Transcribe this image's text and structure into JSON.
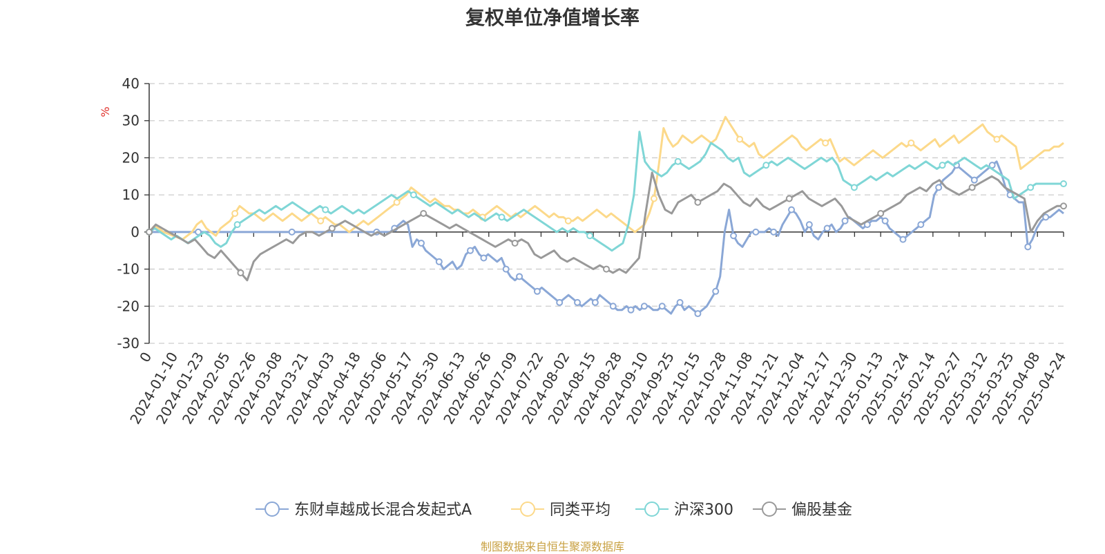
{
  "title": "复权单位净值增长率",
  "source_note": "制图数据来自恒生聚源数据库",
  "source_color": "#c8a041",
  "chart_data": {
    "type": "line",
    "title": "复权单位净值增长率",
    "ylabel": "%",
    "ylabel_color": "#e0302b",
    "ylim": [
      -30,
      40
    ],
    "yticks": [
      40,
      30,
      20,
      10,
      0,
      -10,
      -20,
      -30
    ],
    "grid": true,
    "legend_position": "bottom",
    "x_tick_labels": [
      "0",
      "2024-01-10",
      "2024-01-23",
      "2024-02-05",
      "2024-02-26",
      "2024-03-08",
      "2024-03-21",
      "2024-04-03",
      "2024-04-18",
      "2024-05-06",
      "2024-05-17",
      "2024-05-30",
      "2024-06-13",
      "2024-06-26",
      "2024-07-09",
      "2024-07-22",
      "2024-08-02",
      "2024-08-15",
      "2024-08-28",
      "2024-09-10",
      "2024-09-25",
      "2024-10-15",
      "2024-10-28",
      "2024-11-08",
      "2024-11-21",
      "2024-12-04",
      "2024-12-17",
      "2024-12-30",
      "2025-01-13",
      "2025-01-24",
      "2025-02-14",
      "2025-02-27",
      "2025-03-12",
      "2025-03-25",
      "2025-04-08",
      "2025-04-24"
    ],
    "series": [
      {
        "name": "东财卓越成长混合发起式A",
        "color": "#8aa7d6",
        "values": [
          0,
          0,
          0,
          0,
          0,
          0,
          0,
          0,
          0,
          0,
          0,
          0,
          0,
          0,
          0,
          0,
          0,
          0,
          0,
          0,
          0,
          0,
          0,
          0,
          0,
          0,
          0,
          0,
          0,
          0,
          0,
          0,
          0,
          0,
          0,
          0,
          0,
          0,
          0,
          0,
          0,
          0,
          0,
          0,
          0,
          0,
          0,
          0,
          0,
          0,
          0,
          0,
          0,
          0,
          0,
          1,
          2,
          3,
          2,
          -4,
          -2,
          -3,
          -5,
          -6,
          -7,
          -8,
          -10,
          -9,
          -8,
          -10,
          -9,
          -6,
          -5,
          -4,
          -6,
          -7,
          -6,
          -7,
          -8,
          -7,
          -10,
          -12,
          -13,
          -12,
          -13,
          -14,
          -15,
          -16,
          -15,
          -16,
          -17,
          -18,
          -19,
          -18,
          -17,
          -18,
          -19,
          -20,
          -19,
          -18,
          -19,
          -17,
          -18,
          -19,
          -20,
          -21,
          -21,
          -20,
          -21,
          -20,
          -21,
          -20,
          -20,
          -21,
          -21,
          -20,
          -21,
          -22,
          -20,
          -19,
          -21,
          -20,
          -21,
          -22,
          -21,
          -20,
          -18,
          -16,
          -12,
          0,
          6,
          -1,
          -3,
          -4,
          -2,
          0,
          0,
          0,
          0,
          1,
          0,
          -1,
          2,
          4,
          6,
          5,
          3,
          0,
          2,
          -1,
          -2,
          0,
          1,
          2,
          0,
          1,
          3,
          4,
          3,
          2,
          1,
          2,
          3,
          3,
          4,
          3,
          1,
          0,
          -1,
          -2,
          -1,
          0,
          1,
          2,
          3,
          4,
          10,
          12,
          14,
          15,
          16,
          18,
          17,
          16,
          15,
          14,
          15,
          16,
          17,
          18,
          19,
          16,
          12,
          10,
          9,
          8,
          8,
          -4,
          -2,
          1,
          3,
          4,
          4,
          5,
          6,
          5
        ],
        "markers": [
          0,
          11,
          32,
          51,
          55,
          61,
          65,
          72,
          75,
          80,
          83,
          87,
          92,
          96,
          100,
          104,
          108,
          111,
          115,
          119,
          123,
          127,
          131,
          136,
          140,
          144,
          148,
          152,
          156,
          161,
          165,
          169,
          173,
          177,
          181,
          185,
          189,
          193,
          197,
          201
        ]
      },
      {
        "name": "同类平均",
        "color": "#fcd98a",
        "values": [
          0,
          1.5,
          1,
          0,
          -0.5,
          -1,
          -1.5,
          -2,
          -1,
          0,
          2,
          3,
          1,
          0,
          -1,
          1,
          2,
          3,
          5,
          7,
          6,
          5,
          5,
          4,
          3,
          4,
          5,
          4,
          3,
          4,
          5,
          4,
          3,
          4,
          5,
          4,
          3,
          4,
          3,
          2,
          2,
          1,
          0,
          1,
          2,
          3,
          2,
          3,
          4,
          5,
          6,
          7,
          8,
          9,
          10,
          12,
          11,
          10,
          9,
          8,
          9,
          8,
          7,
          7,
          6,
          6,
          5,
          5,
          6,
          5,
          4,
          5,
          6,
          7,
          6,
          5,
          4,
          5,
          4,
          5,
          6,
          7,
          6,
          5,
          4,
          5,
          4,
          4,
          3,
          3,
          4,
          3,
          4,
          5,
          6,
          5,
          4,
          5,
          4,
          3,
          2,
          1,
          0,
          1,
          2,
          5,
          9,
          18,
          28,
          25,
          23,
          24,
          26,
          25,
          24,
          25,
          26,
          25,
          24,
          25,
          28,
          31,
          29,
          27,
          25,
          24,
          23,
          24,
          21,
          20,
          21,
          22,
          23,
          24,
          25,
          26,
          25,
          23,
          22,
          23,
          24,
          25,
          24,
          25,
          22,
          19,
          20,
          19,
          18,
          19,
          20,
          21,
          22,
          21,
          20,
          21,
          22,
          23,
          24,
          23,
          24,
          23,
          22,
          23,
          24,
          25,
          23,
          24,
          25,
          26,
          24,
          25,
          26,
          27,
          28,
          29,
          27,
          26,
          25,
          26,
          25,
          24,
          23,
          17,
          18,
          19,
          20,
          21,
          22,
          22,
          23,
          23,
          24
        ],
        "markers": [
          0,
          18,
          36,
          52,
          70,
          88,
          106,
          124,
          142,
          160,
          178,
          196
        ]
      },
      {
        "name": "沪深300",
        "color": "#7fd6d6",
        "values": [
          0,
          1,
          0,
          -1,
          -2,
          -1,
          -2,
          -3,
          -2,
          -1,
          0,
          -1,
          -3,
          -4,
          -3,
          0,
          2,
          3,
          4,
          5,
          6,
          5,
          6,
          7,
          6,
          7,
          8,
          7,
          6,
          5,
          6,
          7,
          6,
          5,
          6,
          7,
          6,
          5,
          6,
          5,
          6,
          7,
          8,
          9,
          10,
          9,
          10,
          11,
          10,
          9,
          8,
          7,
          8,
          7,
          6,
          5,
          6,
          5,
          4,
          5,
          4,
          3,
          4,
          5,
          4,
          3,
          4,
          5,
          6,
          5,
          4,
          3,
          2,
          1,
          0,
          1,
          0,
          1,
          0,
          0,
          -1,
          -2,
          -3,
          -4,
          -5,
          -4,
          -3,
          2,
          10,
          27,
          19,
          17,
          16,
          15,
          16,
          18,
          19,
          18,
          17,
          18,
          19,
          21,
          24,
          23,
          22,
          20,
          19,
          20,
          16,
          15,
          16,
          17,
          18,
          19,
          18,
          19,
          20,
          19,
          18,
          17,
          18,
          19,
          20,
          19,
          20,
          18,
          14,
          13,
          12,
          13,
          14,
          15,
          14,
          15,
          16,
          15,
          16,
          17,
          18,
          17,
          18,
          19,
          18,
          17,
          18,
          19,
          18,
          19,
          20,
          19,
          18,
          17,
          18,
          17,
          16,
          15,
          14,
          9,
          10,
          11,
          12,
          13,
          13,
          13,
          13,
          13,
          13
        ],
        "markers": [
          0,
          16,
          32,
          48,
          64,
          80,
          96,
          112,
          128,
          144,
          160,
          166
        ]
      },
      {
        "name": "偏股基金",
        "color": "#999999",
        "values": [
          0,
          2,
          1,
          0,
          -1,
          -2,
          -3,
          -2,
          -4,
          -6,
          -7,
          -5,
          -7,
          -9,
          -11,
          -13,
          -8,
          -6,
          -5,
          -4,
          -3,
          -2,
          -3,
          -1,
          0,
          0,
          -1,
          0,
          1,
          2,
          3,
          2,
          1,
          0,
          -1,
          0,
          -1,
          0,
          1,
          2,
          3,
          4,
          5,
          4,
          3,
          2,
          1,
          2,
          1,
          0,
          -1,
          -2,
          -3,
          -4,
          -3,
          -2,
          -3,
          -2,
          -3,
          -6,
          -7,
          -6,
          -5,
          -7,
          -8,
          -7,
          -8,
          -9,
          -10,
          -9,
          -10,
          -11,
          -10,
          -11,
          -9,
          -7,
          5,
          16,
          10,
          6,
          5,
          8,
          9,
          10,
          8,
          9,
          10,
          11,
          13,
          12,
          10,
          8,
          7,
          9,
          7,
          6,
          7,
          8,
          9,
          10,
          11,
          9,
          8,
          7,
          8,
          9,
          7,
          4,
          3,
          2,
          3,
          4,
          5,
          6,
          7,
          8,
          10,
          11,
          12,
          11,
          13,
          14,
          12,
          11,
          10,
          11,
          12,
          13,
          14,
          15,
          14,
          12,
          11,
          10,
          9,
          0,
          3,
          5,
          6,
          7,
          7
        ],
        "markers": [
          0,
          14,
          28,
          42,
          56,
          70,
          84,
          98,
          112,
          126,
          140
        ]
      }
    ]
  }
}
